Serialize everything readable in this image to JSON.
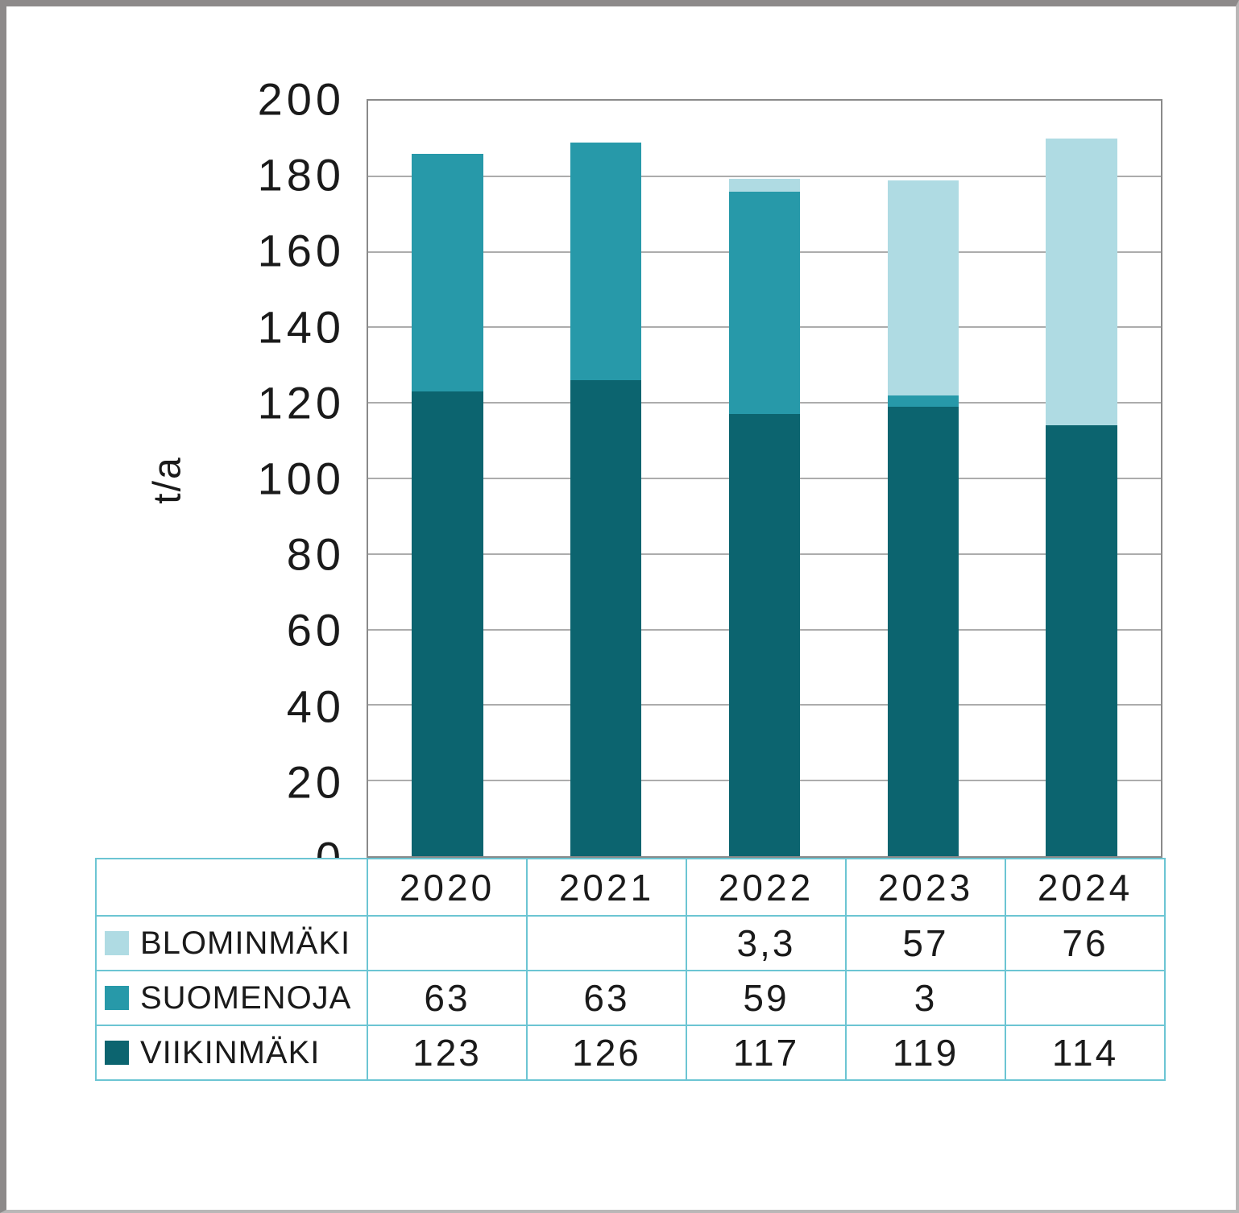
{
  "chart_data": {
    "type": "bar",
    "stacked": true,
    "title": "",
    "xlabel": "",
    "ylabel": "t/a",
    "ylim": [
      0,
      200
    ],
    "ytick_step": 20,
    "yticks": [
      "200",
      "180",
      "160",
      "140",
      "120",
      "100",
      "80",
      "60",
      "40",
      "20",
      "0"
    ],
    "grid": "horizontal",
    "legend_position": "table-left",
    "categories": [
      "2020",
      "2021",
      "2022",
      "2023",
      "2024"
    ],
    "series": [
      {
        "key": "blominmaki",
        "name": "BLOMINMÄKI",
        "color": "#afdbe3",
        "values": [
          null,
          null,
          3.3,
          57,
          76
        ],
        "display": [
          "",
          "",
          "3,3",
          "57",
          "76"
        ]
      },
      {
        "key": "suomenoja",
        "name": "SUOMENOJA",
        "color": "#2799a9",
        "values": [
          63,
          63,
          59,
          3,
          null
        ],
        "display": [
          "63",
          "63",
          "59",
          "3",
          ""
        ]
      },
      {
        "key": "viikinmaki",
        "name": "VIIKINMÄKI",
        "color": "#0c646f",
        "values": [
          123,
          126,
          117,
          119,
          114
        ],
        "display": [
          "123",
          "126",
          "117",
          "119",
          "114"
        ]
      }
    ],
    "colors": {
      "plot_border": "#8a8a8a",
      "gridline": "#acacac",
      "table_border": "#6cc5d3",
      "text": "#1a1a1a",
      "frame_border": "#8d8a8a"
    }
  }
}
